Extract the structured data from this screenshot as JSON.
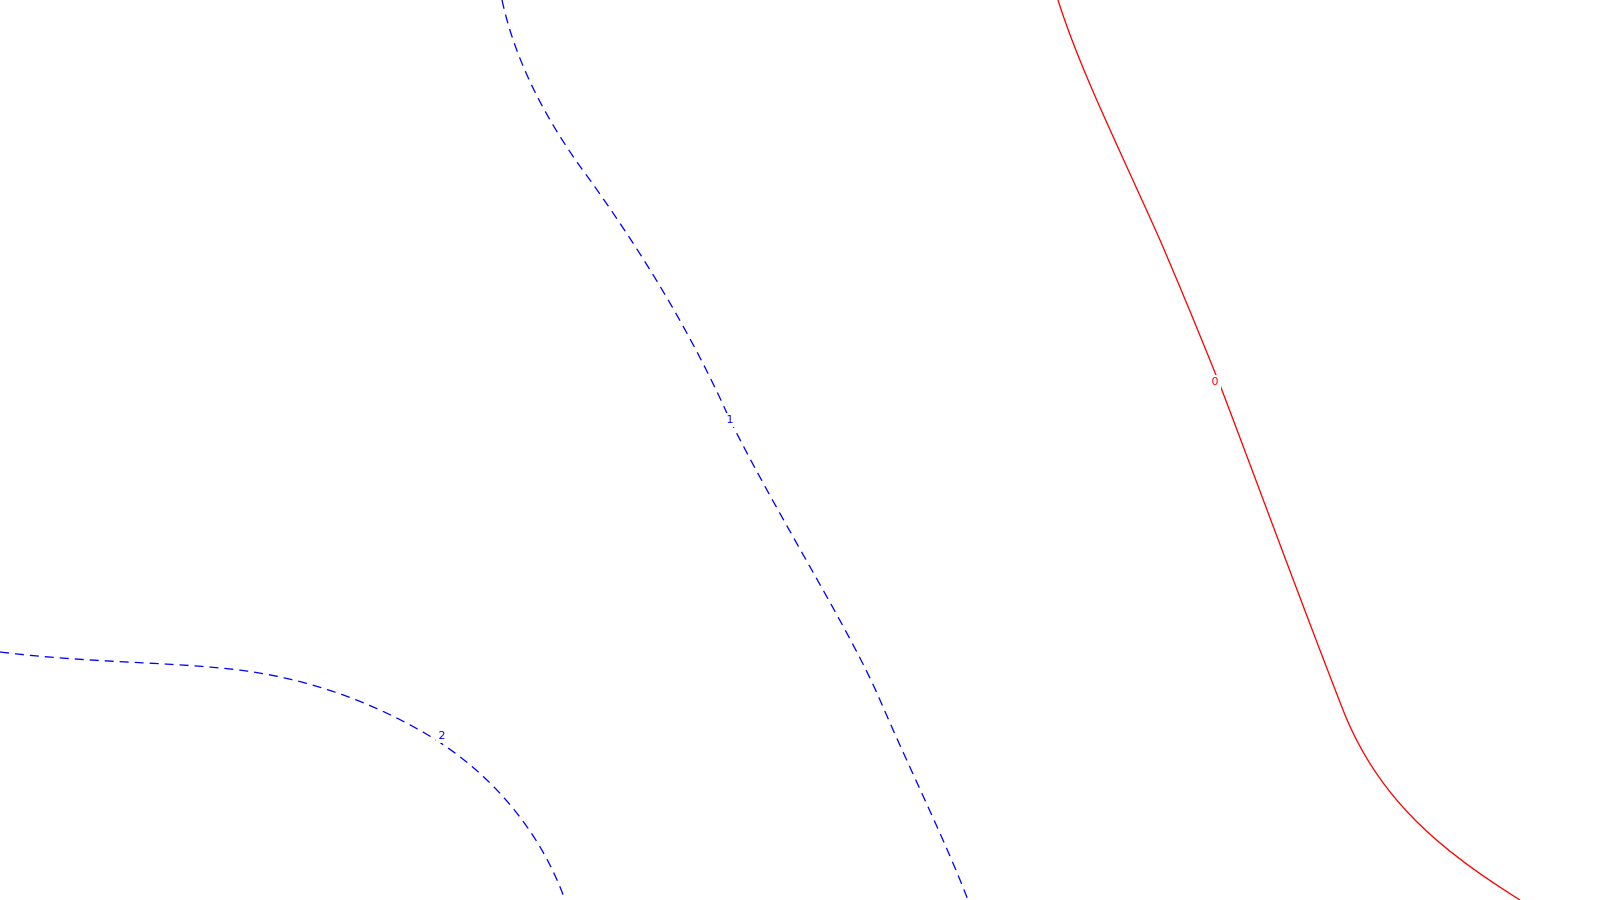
{
  "chart_data": {
    "type": "contour",
    "colors": {
      "negative": "#0000ff",
      "zero": "#ff0000"
    },
    "series": [
      {
        "level": "2",
        "label": "2",
        "style": "dashed"
      },
      {
        "level": "1",
        "label": "1",
        "style": "dashed"
      },
      {
        "level": "0",
        "label": "0",
        "style": "solid"
      }
    ]
  }
}
